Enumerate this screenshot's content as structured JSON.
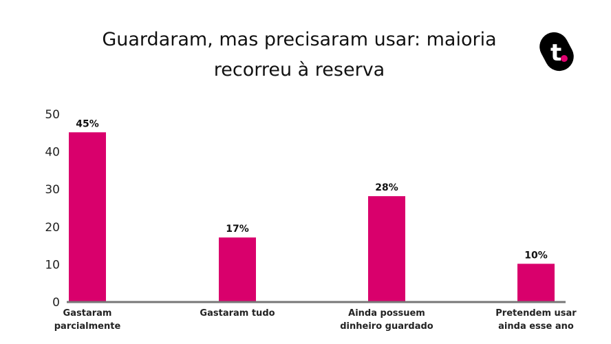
{
  "chart_data": {
    "type": "bar",
    "title_lines": [
      "Guardaram, mas precisaram usar: maioria",
      "recorreu à reserva"
    ],
    "categories": [
      [
        "Gastaram",
        "parcialmente"
      ],
      [
        "Gastaram tudo"
      ],
      [
        "Ainda possuem",
        "dinheiro guardado"
      ],
      [
        "Pretendem usar",
        "ainda esse ano"
      ]
    ],
    "values": [
      45,
      17,
      28,
      10
    ],
    "data_labels": [
      "45%",
      "17%",
      "28%",
      "10%"
    ],
    "yticks": [
      "0",
      "10",
      "20",
      "30",
      "40",
      "50"
    ],
    "ylim": [
      0,
      50
    ],
    "xlabel": "",
    "ylabel": "",
    "grid": false,
    "bar_color": "#d9006c",
    "axis_color": "#777777"
  },
  "logo": {
    "text": "t.",
    "dot_color": "#e0006e"
  }
}
